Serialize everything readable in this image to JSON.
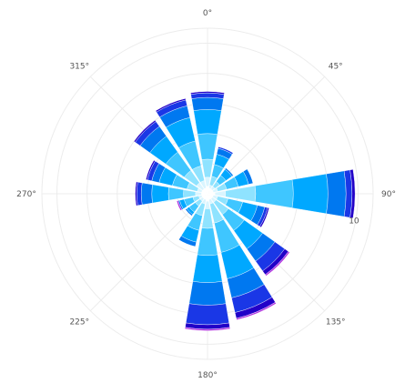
{
  "chart_data": {
    "type": "barpolar",
    "title": "",
    "angular_axis": {
      "direction": "clockwise",
      "rotation": "north",
      "tick_labels": [
        "0°",
        "45°",
        "90°",
        "135°",
        "180°",
        "225°",
        "270°",
        "315°"
      ],
      "tick_angles": [
        0,
        45,
        90,
        135,
        180,
        225,
        270,
        315
      ]
    },
    "radial_axis": {
      "range": [
        0,
        11
      ],
      "tick_values": [
        2,
        4,
        6,
        8,
        10
      ],
      "tick_labels": [
        "",
        "",
        "",
        "",
        "10"
      ],
      "grid": true
    },
    "bar_width_deg": 19,
    "directions": [
      0,
      22.5,
      45,
      67.5,
      90,
      112.5,
      135,
      157.5,
      180,
      202.5,
      225,
      247.5,
      270,
      292.5,
      315,
      337.5
    ],
    "series": [
      {
        "color": "#ffffff",
        "values": [
          0.5,
          0.4,
          0.4,
          0.4,
          0.5,
          0.4,
          0.4,
          0.4,
          0.5,
          0.4,
          0.4,
          0.4,
          0.4,
          0.4,
          0.4,
          0.4
        ]
      },
      {
        "color": "#d9f5ff",
        "values": [
          0.6,
          0.2,
          0.2,
          0.3,
          0.7,
          0.3,
          0.3,
          0.3,
          0.5,
          0.3,
          0.2,
          0.2,
          0.4,
          0.3,
          0.5,
          0.5
        ]
      },
      {
        "color": "#8fe3ff",
        "values": [
          1.2,
          0.6,
          0.4,
          0.6,
          2.0,
          0.7,
          1.0,
          1.3,
          1.3,
          0.8,
          0.4,
          0.4,
          0.8,
          0.7,
          1.0,
          1.0
        ]
      },
      {
        "color": "#3fc6ff",
        "values": [
          1.7,
          0.8,
          0.5,
          0.8,
          2.5,
          1.0,
          1.3,
          2.0,
          1.8,
          1.0,
          0.5,
          0.6,
          1.0,
          1.0,
          1.5,
          1.7
        ]
      },
      {
        "color": "#00a8ff",
        "values": [
          1.6,
          0.7,
          0.5,
          0.7,
          2.3,
          1.0,
          1.5,
          1.8,
          1.8,
          0.8,
          0.2,
          0.3,
          1.1,
          0.9,
          1.3,
          1.6
        ]
      },
      {
        "color": "#0078f0",
        "values": [
          0.8,
          0.4,
          0.1,
          0.3,
          1.2,
          0.5,
          1.0,
          1.3,
          1.5,
          0.3,
          0.1,
          0.1,
          0.7,
          0.5,
          0.8,
          0.8
        ]
      },
      {
        "color": "#1a37e6",
        "values": [
          0.3,
          0.1,
          0.0,
          0.0,
          0.4,
          0.2,
          0.8,
          1.0,
          1.3,
          0.0,
          0.0,
          0.0,
          0.3,
          0.3,
          0.4,
          0.4
        ]
      },
      {
        "color": "#2200c8",
        "values": [
          0.1,
          0.0,
          0.0,
          0.0,
          0.2,
          0.1,
          0.3,
          0.4,
          0.3,
          0.0,
          0.0,
          0.0,
          0.1,
          0.1,
          0.1,
          0.1
        ]
      },
      {
        "color": "#b030e0",
        "values": [
          0.0,
          0.0,
          0.0,
          0.0,
          0.0,
          0.0,
          0.1,
          0.1,
          0.1,
          0.0,
          0.0,
          0.1,
          0.0,
          0.0,
          0.0,
          0.0
        ]
      }
    ],
    "legend": false
  }
}
